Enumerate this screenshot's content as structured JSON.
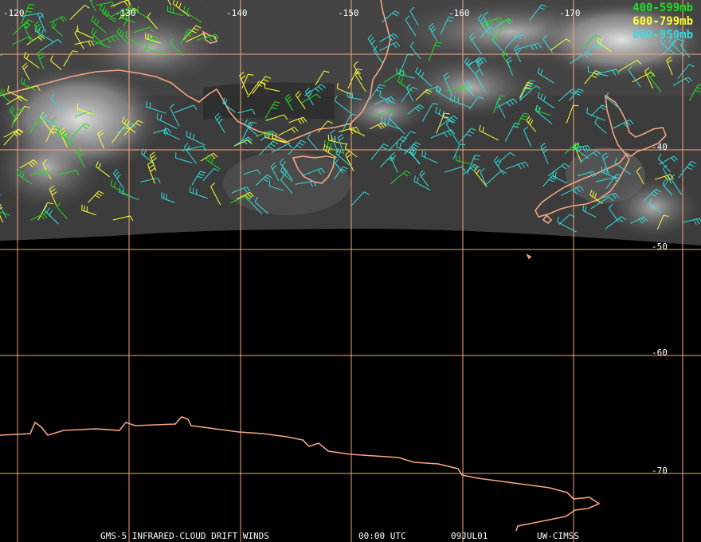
{
  "map": {
    "longitude_labels": [
      "-120",
      "-130",
      "-140",
      "-150",
      "-160",
      "-170"
    ],
    "latitude_labels": [
      "-40",
      "-50",
      "-60",
      "-70"
    ],
    "legend": [
      {
        "label": "400-599mb",
        "color": "#22dd22"
      },
      {
        "label": "600-799mb",
        "color": "#ffff33"
      },
      {
        "label": "800-950mb",
        "color": "#33dddd"
      }
    ],
    "footer": {
      "satellite": "GMS-5 INFRARED-CLOUD DRIFT WINDS",
      "time": "00:00 UTC",
      "date": "09JUL01",
      "credit": "UW-CIMSS"
    },
    "colors": {
      "grid": "#f4a582",
      "coastline": "#f4a582",
      "background": "#000000",
      "label": "#ffffff"
    }
  }
}
